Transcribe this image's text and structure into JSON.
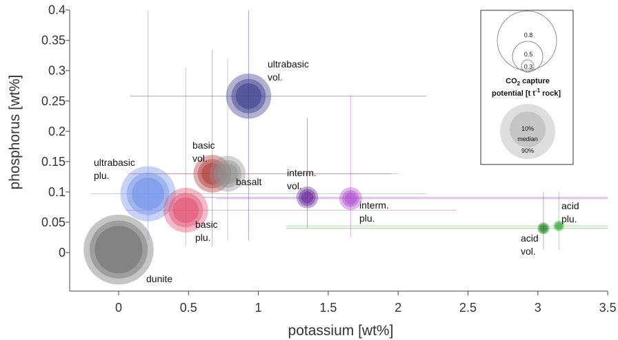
{
  "chart_data": {
    "type": "scatter",
    "xlabel": "potassium [wt%]",
    "ylabel": "phosphorus [wt%]",
    "xlim": [
      -0.15,
      3.5
    ],
    "ylim": [
      -0.065,
      0.4
    ],
    "x_ticks": [
      "0",
      "0.5",
      "1",
      "1.5",
      "2",
      "2.5",
      "3",
      "3.5"
    ],
    "x_tick_values": [
      0,
      0.5,
      1,
      1.5,
      2,
      2.5,
      3,
      3.5
    ],
    "y_ticks": [
      "0",
      "0.05",
      "0.1",
      "0.15",
      "0.2",
      "0.25",
      "0.3",
      "0.35",
      "0.4"
    ],
    "y_tick_values": [
      0,
      0.05,
      0.1,
      0.15,
      0.2,
      0.25,
      0.3,
      0.35,
      0.4
    ],
    "grid": false,
    "legend_position": "top-right",
    "points": [
      {
        "id": "dunite",
        "label": [
          "dunite"
        ],
        "x": 0.0,
        "y": 0.005,
        "color": "#6e6e6e",
        "co2_capture": {
          "p10": 0.48,
          "median": 0.71,
          "p90": 1.03
        },
        "x_range": null,
        "y_range": null
      },
      {
        "id": "ultrabasic-plu",
        "label": [
          "ultrabasic",
          "plu."
        ],
        "x": 0.21,
        "y": 0.097,
        "color": "#7090e8",
        "co2_capture": {
          "p10": 0.22,
          "median": 0.38,
          "p90": 0.64
        },
        "x_range": [
          -0.2,
          2.2
        ],
        "y_range": [
          0.02,
          0.4
        ]
      },
      {
        "id": "basic-plu",
        "label": [
          "basic",
          "plu."
        ],
        "x": 0.48,
        "y": 0.07,
        "color": "#e05070",
        "co2_capture": {
          "p10": 0.14,
          "median": 0.25,
          "p90": 0.42
        },
        "x_range": [
          0.05,
          2.42
        ],
        "y_range": [
          0.01,
          0.305
        ]
      },
      {
        "id": "basic-vol",
        "label": [
          "basic",
          "vol."
        ],
        "x": 0.67,
        "y": 0.13,
        "color": "#b03a3a",
        "co2_capture": {
          "p10": 0.1,
          "median": 0.18,
          "p90": 0.3
        },
        "x_range": [
          0.07,
          1.95
        ],
        "y_range": [
          0.01,
          0.335
        ]
      },
      {
        "id": "basalt",
        "label": [
          "basalt"
        ],
        "x": 0.78,
        "y": 0.13,
        "color": "#909090",
        "co2_capture": {
          "p10": 0.09,
          "median": 0.16,
          "p90": 0.27
        },
        "x_range": [
          0.1,
          2.0
        ],
        "y_range": [
          0.02,
          0.32
        ]
      },
      {
        "id": "ultrabasic-vol",
        "label": [
          "ultrabasic",
          "vol."
        ],
        "x": 0.93,
        "y": 0.258,
        "color": "#3a3a8a",
        "co2_capture": {
          "p10": 0.14,
          "median": 0.25,
          "p90": 0.43
        },
        "x_range": [
          0.08,
          2.2
        ],
        "y_range": [
          0.02,
          0.4
        ]
      },
      {
        "id": "interm-vol",
        "label": [
          "interm.",
          "vol."
        ],
        "x": 1.35,
        "y": 0.091,
        "color": "#6a2a9a",
        "co2_capture": {
          "p10": 0.03,
          "median": 0.06,
          "p90": 0.1
        },
        "x_range": [
          0.6,
          3.5
        ],
        "y_range": [
          0.04,
          0.222
        ]
      },
      {
        "id": "interm-plu",
        "label": [
          "interm.",
          "plu."
        ],
        "x": 1.66,
        "y": 0.089,
        "color": "#b050d0",
        "co2_capture": {
          "p10": 0.03,
          "median": 0.06,
          "p90": 0.11
        },
        "x_range": [
          0.7,
          3.5
        ],
        "y_range": [
          0.025,
          0.26
        ]
      },
      {
        "id": "acid-vol",
        "label": [
          "acid",
          "vol."
        ],
        "x": 3.04,
        "y": 0.04,
        "color": "#2a8a2a",
        "co2_capture": {
          "p10": 0.01,
          "median": 0.02,
          "p90": 0.03
        },
        "x_range": [
          1.2,
          3.5
        ],
        "y_range": [
          0.005,
          0.1
        ]
      },
      {
        "id": "acid-plu",
        "label": [
          "acid",
          "plu."
        ],
        "x": 3.15,
        "y": 0.044,
        "color": "#40b040",
        "co2_capture": {
          "p10": 0.01,
          "median": 0.015,
          "p90": 0.025
        },
        "x_range": [
          1.2,
          3.5
        ],
        "y_range": [
          0.005,
          0.1
        ]
      }
    ]
  },
  "legend": {
    "size_values": [
      "0.8",
      "0.5",
      "0.3"
    ],
    "size_title_line1_main": "CO",
    "size_title_line1_sub": "2",
    "size_title_line1_rest": " capture",
    "size_title_line2_main": "potential [t t",
    "size_title_line2_sup": "-1",
    "size_title_line2_rest": " rock]",
    "percentile_labels": [
      "10%",
      "median",
      "90%"
    ]
  }
}
